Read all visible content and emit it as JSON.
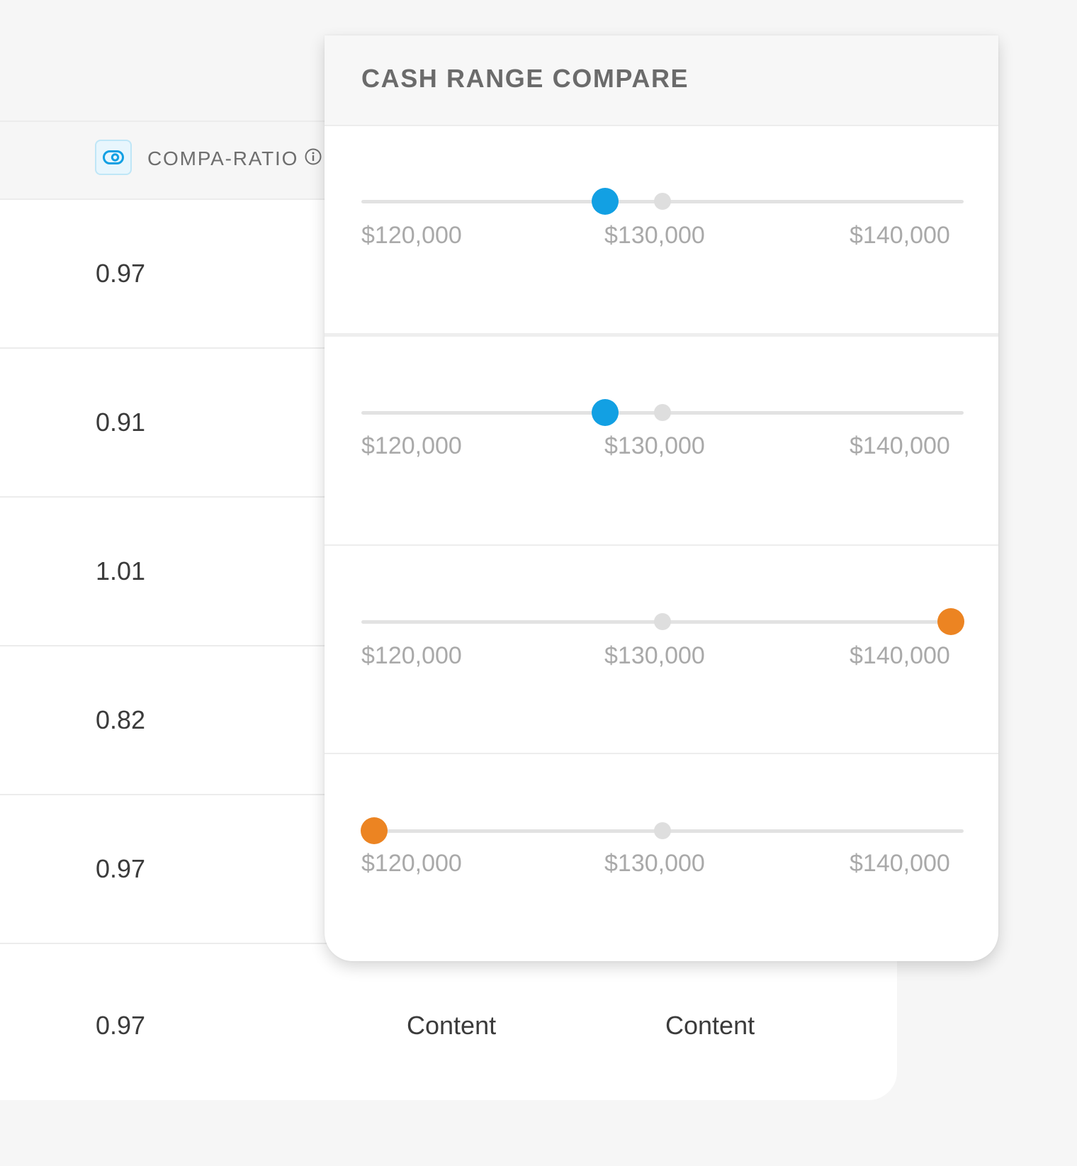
{
  "table": {
    "column_title": "COMPA-RATIO",
    "badge_icon": "pill-toggle-icon",
    "info_icon": "info-circle-icon",
    "accent_color": "#12a0e3",
    "rows": [
      {
        "value": "0.97"
      },
      {
        "value": "0.91"
      },
      {
        "value": "1.01"
      },
      {
        "value": "0.82"
      },
      {
        "value": "0.97"
      },
      {
        "value": "0.97",
        "content_1": "Content",
        "content_2": "Content"
      }
    ]
  },
  "popover": {
    "title": "CASH RANGE COMPARE",
    "ticks": [
      "$120,000",
      "$130,000",
      "$140,000"
    ],
    "range_min": 120000,
    "range_max": 140000,
    "midpoint": 130000,
    "colors": {
      "below_midpoint": "#12a0e3",
      "outside_range": "#ec8422",
      "midpoint_dot": "#dedede",
      "track": "#e2e2e2"
    },
    "ranges": [
      {
        "value": 128000,
        "status": "below_midpoint"
      },
      {
        "value": 128000,
        "status": "below_midpoint"
      },
      {
        "value": 140000,
        "status": "outside_range"
      },
      {
        "value": 120000,
        "status": "outside_range"
      }
    ]
  }
}
